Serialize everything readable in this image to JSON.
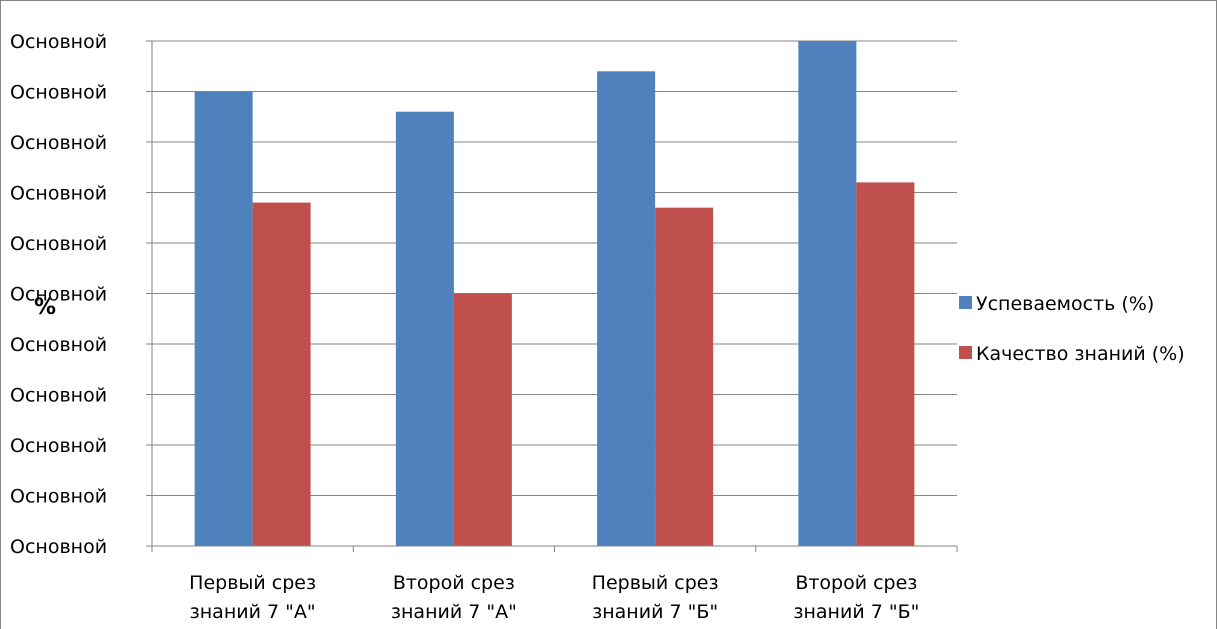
{
  "chart_data": {
    "type": "bar",
    "title": "",
    "xlabel": "",
    "ylabel": "%",
    "categories": [
      [
        "Первый срез",
        "знаний 7 \"А\""
      ],
      [
        "Второй срез",
        "знаний 7 \"А\""
      ],
      [
        "Первый срез",
        "знаний 7 \"Б\""
      ],
      [
        "Второй срез",
        "знаний 7 \"Б\""
      ]
    ],
    "y_tick_labels": [
      "Основной",
      "Основной",
      "Основной",
      "Основной",
      "Основной",
      "Основной",
      "Основной",
      "Основной",
      "Основной",
      "Основной",
      "Основной"
    ],
    "ylim": [
      0,
      100
    ],
    "grid": true,
    "legend_position": "right",
    "series": [
      {
        "name": "Успеваемость (%)",
        "color": "#4f81bd",
        "values": [
          90,
          86,
          94,
          100
        ]
      },
      {
        "name": "Качество знаний (%)",
        "color": "#c0504d",
        "values": [
          68,
          50,
          67,
          72
        ]
      }
    ]
  }
}
